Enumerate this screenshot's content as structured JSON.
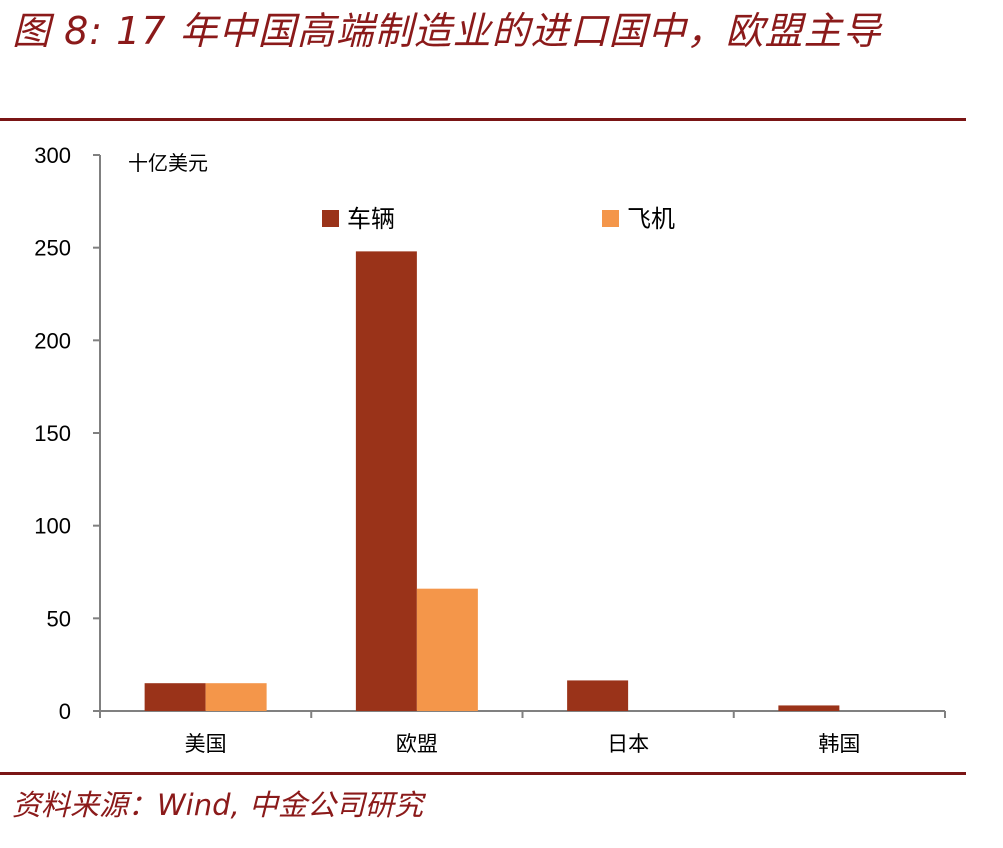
{
  "figure": {
    "title": "图 8: 17 年中国高端制造业的进口国中，欧盟主导",
    "source": "资料来源：Wind, 中金公司研究"
  },
  "colors": {
    "accent": "#7a1515",
    "title": "#8b1a1a"
  },
  "chart_data": {
    "type": "bar",
    "unit_label": "十亿美元",
    "categories": [
      "美国",
      "欧盟",
      "日本",
      "韩国"
    ],
    "series": [
      {
        "name": "车辆",
        "color": "#9a3319",
        "values": [
          15,
          248,
          16.5,
          3
        ]
      },
      {
        "name": "飞机",
        "color": "#f4964a",
        "values": [
          15,
          66,
          0,
          0
        ]
      }
    ],
    "ylim": [
      0,
      300
    ],
    "yticks": [
      0,
      50,
      100,
      150,
      200,
      250,
      300
    ],
    "legend_position": "top",
    "grid": false
  }
}
